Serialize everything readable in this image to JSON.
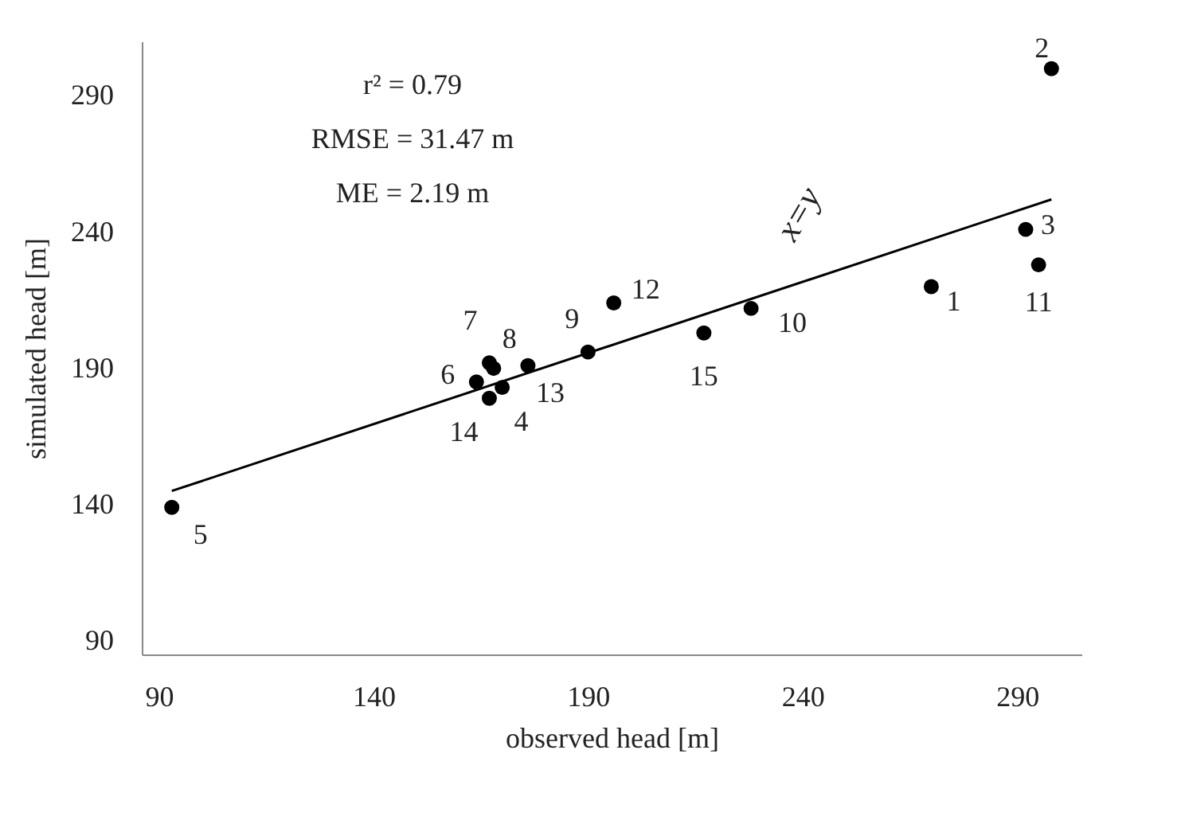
{
  "chart_data": {
    "type": "scatter",
    "xlabel": "observed head [m]",
    "ylabel": "simulated head [m]",
    "xlim": [
      86,
      305
    ],
    "ylim": [
      85,
      310
    ],
    "xticks": [
      90,
      140,
      190,
      240,
      290
    ],
    "yticks": [
      90,
      140,
      190,
      240,
      290
    ],
    "grid": false,
    "series": [
      {
        "color": "#000000",
        "marker": "circle",
        "x": [
          270,
          298,
          292,
          170,
          93,
          164,
          167,
          168,
          190,
          228,
          295,
          196,
          176,
          167,
          217
        ],
        "values": [
          220,
          300,
          241,
          183,
          139,
          185,
          192,
          190,
          196,
          212,
          228,
          214,
          191,
          179,
          203
        ]
      },
      {
        "type": "line",
        "name": "x=y",
        "color": "#000000",
        "x": [
          93,
          298
        ],
        "values": [
          145,
          252
        ]
      }
    ],
    "annotations": [
      "r² = 0.79",
      "RMSE = 31.47 m",
      "ME = 2.19 m",
      {
        "text": "1",
        "x": 270,
        "y": 220
      },
      {
        "text": "2",
        "x": 298,
        "y": 300
      },
      {
        "text": "3",
        "x": 292,
        "y": 241
      },
      {
        "text": "4",
        "x": 170,
        "y": 183
      },
      {
        "text": "5",
        "x": 93,
        "y": 139
      },
      {
        "text": "6",
        "x": 164,
        "y": 185
      },
      {
        "text": "7",
        "x": 167,
        "y": 192
      },
      {
        "text": "8",
        "x": 168,
        "y": 190
      },
      {
        "text": "9",
        "x": 190,
        "y": 196
      },
      {
        "text": "10",
        "x": 228,
        "y": 212
      },
      {
        "text": "11",
        "x": 295,
        "y": 228
      },
      {
        "text": "12",
        "x": 196,
        "y": 214
      },
      {
        "text": "13",
        "x": 176,
        "y": 191
      },
      {
        "text": "14",
        "x": 167,
        "y": 179
      },
      {
        "text": "15",
        "x": 217,
        "y": 203
      }
    ]
  }
}
